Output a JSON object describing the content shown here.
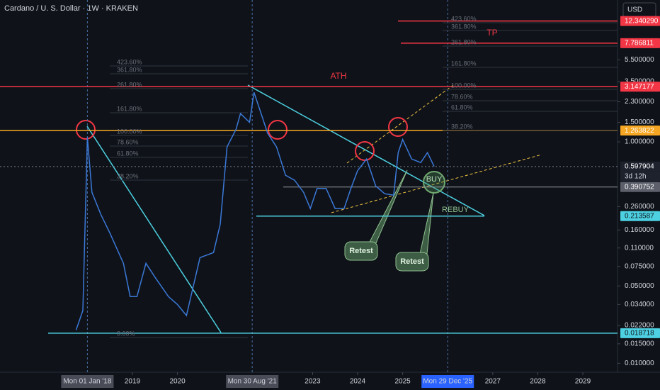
{
  "header": {
    "title": "Cardano / U. S. Dollar · 1W · KRAKEN",
    "currency": "USD"
  },
  "chart_data": {
    "type": "line",
    "log_scale": true,
    "grid": false,
    "color": "#3b78d8",
    "x": [
      2017.75,
      2017.9,
      2018.0,
      2018.1,
      2018.3,
      2018.5,
      2018.8,
      2018.95,
      2019.1,
      2019.3,
      2019.5,
      2019.8,
      2020.0,
      2020.2,
      2020.5,
      2020.8,
      2020.95,
      2021.1,
      2021.3,
      2021.4,
      2021.6,
      2021.7,
      2021.9,
      2022.0,
      2022.2,
      2022.4,
      2022.6,
      2022.8,
      2022.95,
      2023.1,
      2023.3,
      2023.5,
      2023.7,
      2023.85,
      2024.0,
      2024.2,
      2024.4,
      2024.6,
      2024.8,
      2024.9,
      2025.0,
      2025.2,
      2025.4,
      2025.55,
      2025.7
    ],
    "values": [
      0.02,
      0.03,
      1.1,
      0.35,
      0.22,
      0.15,
      0.08,
      0.04,
      0.04,
      0.08,
      0.06,
      0.04,
      0.034,
      0.027,
      0.09,
      0.1,
      0.18,
      0.9,
      1.3,
      1.8,
      1.5,
      2.8,
      1.6,
      1.2,
      0.9,
      0.5,
      0.45,
      0.35,
      0.25,
      0.38,
      0.38,
      0.25,
      0.25,
      0.38,
      0.55,
      0.7,
      0.4,
      0.34,
      0.33,
      0.8,
      1.05,
      0.7,
      0.65,
      0.8,
      0.6
    ],
    "xlim": [
      2016.06,
      2029.77
    ],
    "ylim": [
      0.0083,
      19.1
    ],
    "xticks": [
      2019,
      2020,
      2023,
      2024,
      2025,
      2027,
      2028,
      2029
    ],
    "crosshairs": [
      {
        "value": 2018.0,
        "label": "Mon 01 Jan '18"
      },
      {
        "value": 2021.66,
        "label": "Mon 30 Aug '21"
      },
      {
        "value": 2026.0,
        "label": "Mon 29 Dec '25"
      }
    ],
    "yticks": [
      {
        "value": 5.5,
        "label": "5.500000"
      },
      {
        "value": 3.5,
        "label": "3.500000"
      },
      {
        "value": 2.3,
        "label": "2.300000"
      },
      {
        "value": 1.5,
        "label": "1.500000"
      },
      {
        "value": 1.0,
        "label": "1.000000"
      },
      {
        "value": 0.26,
        "label": "0.260000"
      },
      {
        "value": 0.16,
        "label": "0.160000"
      },
      {
        "value": 0.11,
        "label": "0.110000"
      },
      {
        "value": 0.075,
        "label": "0.075000"
      },
      {
        "value": 0.05,
        "label": "0.050000"
      },
      {
        "value": 0.034,
        "label": "0.034000"
      },
      {
        "value": 0.022,
        "label": "0.022000"
      },
      {
        "value": 0.015,
        "label": "0.015000"
      },
      {
        "value": 0.01,
        "label": "0.010000"
      }
    ],
    "price_tags": [
      {
        "value": 12.34029,
        "label": "12.340290",
        "color": "#f23645"
      },
      {
        "value": 7.786811,
        "label": "7.786811",
        "color": "#f23645"
      },
      {
        "value": 3.147177,
        "label": "3.147177",
        "color": "#f23645"
      },
      {
        "value": 1.263822,
        "label": "1.263822",
        "color": "#f5a623"
      },
      {
        "value": 0.597904,
        "label": "0.597904",
        "color": "#1e222d"
      },
      {
        "value": 0.390752,
        "label": "0.390752",
        "color": "#5d606b"
      },
      {
        "value": 0.213587,
        "label": "0.213587",
        "color": "#4dd0e1"
      },
      {
        "value": 0.018718,
        "label": "0.018718",
        "color": "#4dd0e1"
      }
    ],
    "countdown": "3d 12h",
    "fib_left": [
      "423.60%",
      "361.80%",
      "261.80%",
      "161.80%",
      "100.00%",
      "78.60%",
      "61.80%",
      "38.20%",
      "0.00%"
    ],
    "fib_right": [
      "423.60%",
      "361.80%",
      "261.80%",
      "161.80%",
      "100.00%",
      "78.60%",
      "61.80%",
      "38.20%"
    ],
    "annotations": {
      "ath": "ATH",
      "tp": "TP",
      "buy": "BUY",
      "rebuy": "REBUY",
      "retest_1": "Retest",
      "retest_2": "Retest"
    }
  }
}
